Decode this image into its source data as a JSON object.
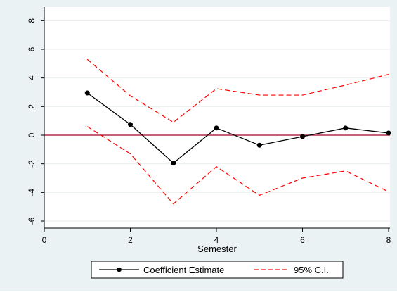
{
  "chart_data": {
    "type": "line",
    "xlabel": "Semester",
    "ylabel": "",
    "title": "",
    "xlim": [
      0,
      8
    ],
    "ylim": [
      -6,
      8
    ],
    "x_ticks": [
      0,
      2,
      4,
      6,
      8
    ],
    "y_ticks": [
      -6,
      -4,
      -2,
      0,
      2,
      4,
      6,
      8
    ],
    "grid": "horizontal",
    "reference_line": {
      "y": 0,
      "color": "#a50021"
    },
    "legend_position": "bottom",
    "series": [
      {
        "name": "Coefficient Estimate",
        "style": "solid-with-markers",
        "color": "#000000",
        "x": [
          1,
          2,
          3,
          4,
          5,
          6,
          7,
          8
        ],
        "y": [
          2.95,
          0.75,
          -1.95,
          0.5,
          -0.7,
          -0.1,
          0.5,
          0.15
        ]
      },
      {
        "name": "95% C.I.",
        "style": "dashed",
        "color": "#ff0000",
        "x": [
          1,
          2,
          3,
          4,
          5,
          6,
          7,
          8
        ],
        "y": [
          5.3,
          2.75,
          0.9,
          3.25,
          2.8,
          2.8,
          3.5,
          4.25
        ]
      },
      {
        "name": "95% C.I.",
        "style": "dashed",
        "color": "#ff0000",
        "x": [
          1,
          2,
          3,
          4,
          5,
          6,
          7,
          8
        ],
        "y": [
          0.6,
          -1.3,
          -4.8,
          -2.2,
          -4.2,
          -3.0,
          -2.5,
          -3.95
        ]
      }
    ],
    "legend": [
      {
        "label": "Coefficient Estimate",
        "series": 0
      },
      {
        "label": "95% C.I.",
        "series": 1
      }
    ]
  }
}
